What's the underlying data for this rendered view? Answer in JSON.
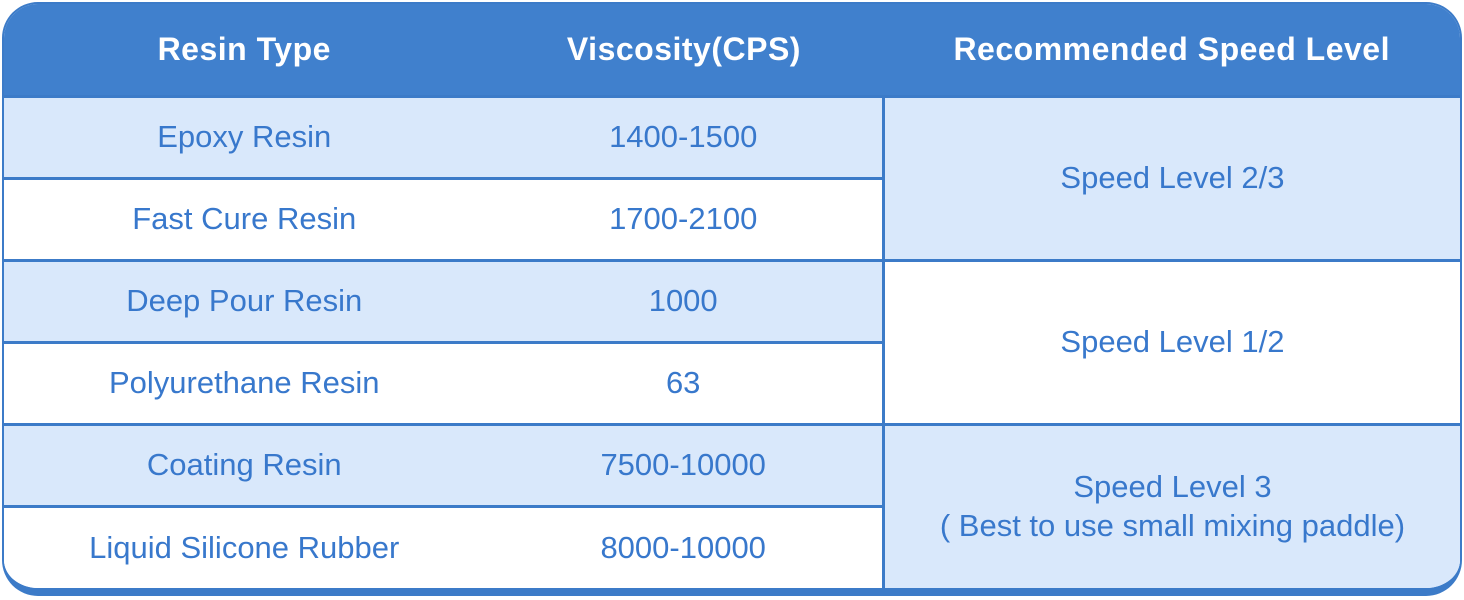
{
  "colors": {
    "header_bg": "#4080CD",
    "border": "#3C7BC8",
    "row_alt_bg": "#D9E8FB",
    "row_bg": "#FFFFFF",
    "cell_text": "#3878CC",
    "header_text": "#FFFFFF",
    "page_bg": "#FFFFFF"
  },
  "chart_data": {
    "type": "table",
    "title": "",
    "columns": [
      "Resin Type",
      "Viscosity(CPS)",
      "Recommended Speed Level"
    ],
    "rows": [
      [
        "Epoxy Resin",
        "1400-1500"
      ],
      [
        "Fast Cure Resin",
        "1700-2100"
      ],
      [
        "Deep Pour Resin",
        "1000"
      ],
      [
        "Polyurethane Resin",
        "63"
      ],
      [
        "Coating Resin",
        "7500-10000"
      ],
      [
        "Liquid Silicone Rubber",
        "8000-10000"
      ]
    ],
    "speed_groups": [
      {
        "span_rows": [
          1,
          2
        ],
        "label_lines": [
          "Speed Level 2/3"
        ]
      },
      {
        "span_rows": [
          3,
          4
        ],
        "label_lines": [
          "Speed Level 1/2"
        ]
      },
      {
        "span_rows": [
          5,
          6
        ],
        "label_lines": [
          "Speed Level 3",
          "( Best to use small mixing paddle)"
        ]
      }
    ],
    "layout_hints": {
      "header_style": "solid blue bar, white bold text, rounded top corners",
      "row_striping": "alternating light-blue / white per row",
      "merged_column": "Recommended Speed Level column merges each pair of rows",
      "grid": "horizontal rules between rows; single vertical rule before merged column; thick blue bottom edge; rounded outer corners"
    }
  }
}
